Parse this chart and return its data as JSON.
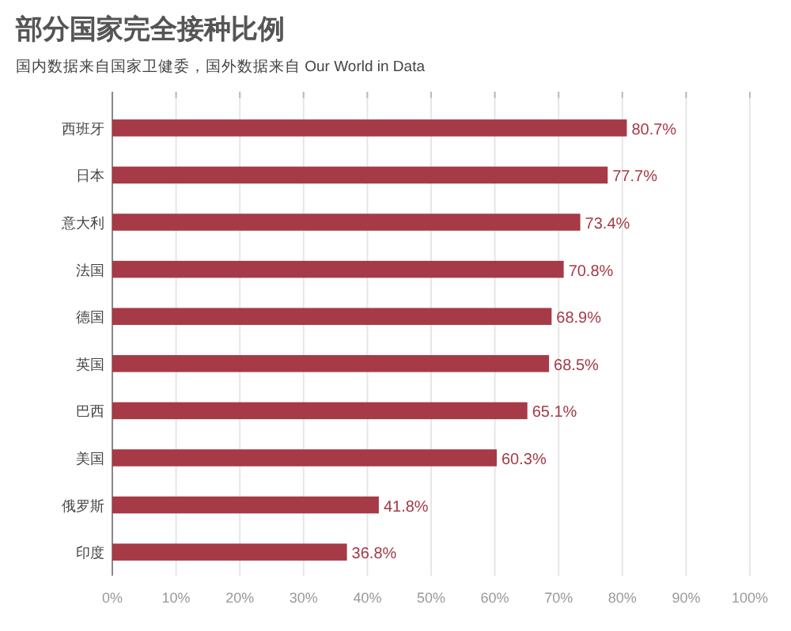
{
  "chart_data": {
    "type": "bar",
    "orientation": "horizontal",
    "title": "部分国家完全接种比例",
    "subtitle": "国内数据来自国家卫健委，国外数据来自 Our World in Data",
    "categories": [
      "西班牙",
      "日本",
      "意大利",
      "法国",
      "德国",
      "英国",
      "巴西",
      "美国",
      "俄罗斯",
      "印度"
    ],
    "values": [
      80.7,
      77.7,
      73.4,
      70.8,
      68.9,
      68.5,
      65.1,
      60.3,
      41.8,
      36.8
    ],
    "value_labels": [
      "80.7%",
      "77.7%",
      "73.4%",
      "70.8%",
      "68.9%",
      "68.5%",
      "65.1%",
      "60.3%",
      "41.8%",
      "36.8%"
    ],
    "color": "#a63a47",
    "xlim": [
      0,
      100
    ],
    "xticks": [
      {
        "value": 0,
        "label": "0%"
      },
      {
        "value": 10,
        "label": "10%"
      },
      {
        "value": 20,
        "label": "20%"
      },
      {
        "value": 30,
        "label": "30%"
      },
      {
        "value": 40,
        "label": "40%"
      },
      {
        "value": 50,
        "label": "50%"
      },
      {
        "value": 60,
        "label": "60%"
      },
      {
        "value": 70,
        "label": "70%"
      },
      {
        "value": 80,
        "label": "80%"
      },
      {
        "value": 90,
        "label": "90%"
      },
      {
        "value": 100,
        "label": "100%"
      }
    ],
    "grid": "x"
  }
}
